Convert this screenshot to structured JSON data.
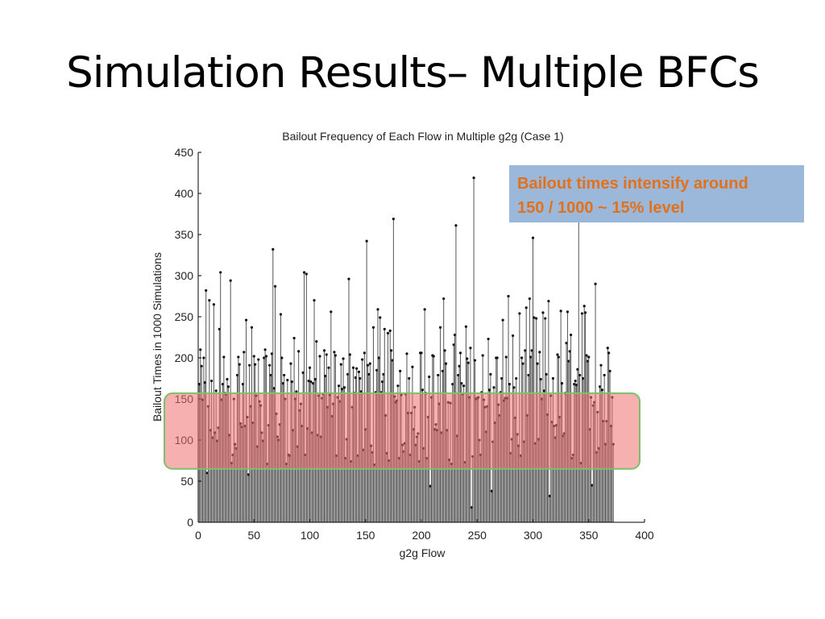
{
  "slide": {
    "title": "Simulation Results– Multiple BFCs"
  },
  "callout": {
    "line1": "Bailout times intensify around",
    "line2": "150 / 1000 ~ 15% level",
    "bg_color": "#9bb7d9",
    "text_color": "#e3711a"
  },
  "highlight": {
    "y_range": [
      65,
      157
    ],
    "fill_color": "#f07070",
    "border_color": "#7fbf6a"
  },
  "chart_data": {
    "type": "stem",
    "title": "Bailout Frequency of Each Flow in Multiple g2g (Case 1)",
    "xlabel": "g2g Flow",
    "ylabel": "Bailout Times in 1000 Simulations",
    "xlim": [
      0,
      400
    ],
    "ylim": [
      0,
      450
    ],
    "xticks": [
      0,
      50,
      100,
      150,
      200,
      250,
      300,
      350,
      400
    ],
    "yticks": [
      0,
      50,
      100,
      150,
      200,
      250,
      300,
      350,
      400,
      450
    ],
    "n_points": 372,
    "highlighted_values": [
      {
        "x": 6,
        "y": 282
      },
      {
        "x": 9,
        "y": 270
      },
      {
        "x": 19,
        "y": 304
      },
      {
        "x": 28,
        "y": 294
      },
      {
        "x": 66,
        "y": 332
      },
      {
        "x": 68,
        "y": 287
      },
      {
        "x": 94,
        "y": 304
      },
      {
        "x": 96,
        "y": 302
      },
      {
        "x": 134,
        "y": 296
      },
      {
        "x": 150,
        "y": 342
      },
      {
        "x": 174,
        "y": 369
      },
      {
        "x": 230,
        "y": 361
      },
      {
        "x": 246,
        "y": 419
      },
      {
        "x": 299,
        "y": 346
      },
      {
        "x": 340,
        "y": 367
      },
      {
        "x": 355,
        "y": 290
      },
      {
        "x": 7,
        "y": 60
      },
      {
        "x": 44,
        "y": 58
      },
      {
        "x": 207,
        "y": 44
      },
      {
        "x": 244,
        "y": 18
      },
      {
        "x": 262,
        "y": 38
      },
      {
        "x": 314,
        "y": 32
      },
      {
        "x": 352,
        "y": 45
      }
    ]
  }
}
